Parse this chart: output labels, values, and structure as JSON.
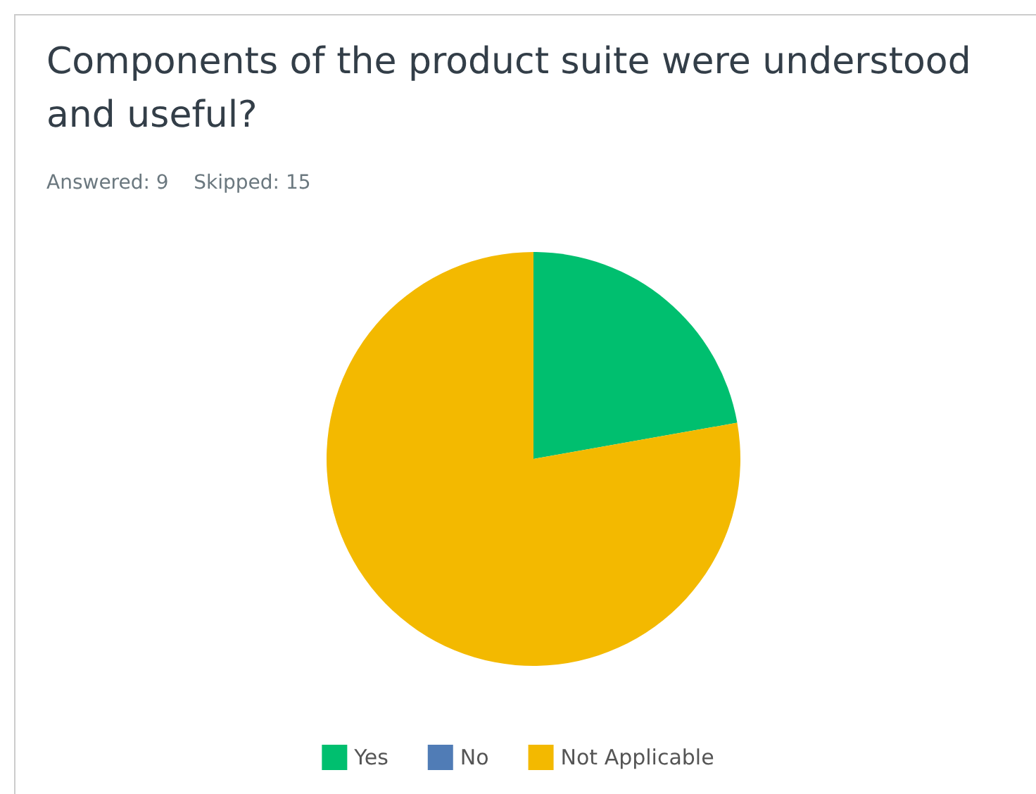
{
  "chart_data": {
    "type": "pie",
    "title": "Components of the product suite were understood and useful?",
    "subtitle": "Answered: 9    Skipped: 15",
    "categories": [
      "Yes",
      "No",
      "Not Applicable"
    ],
    "values": [
      22.2,
      0,
      77.8
    ],
    "colors": [
      "#00bf6f",
      "#507cb6",
      "#f3b900"
    ],
    "legend": "bottom"
  }
}
